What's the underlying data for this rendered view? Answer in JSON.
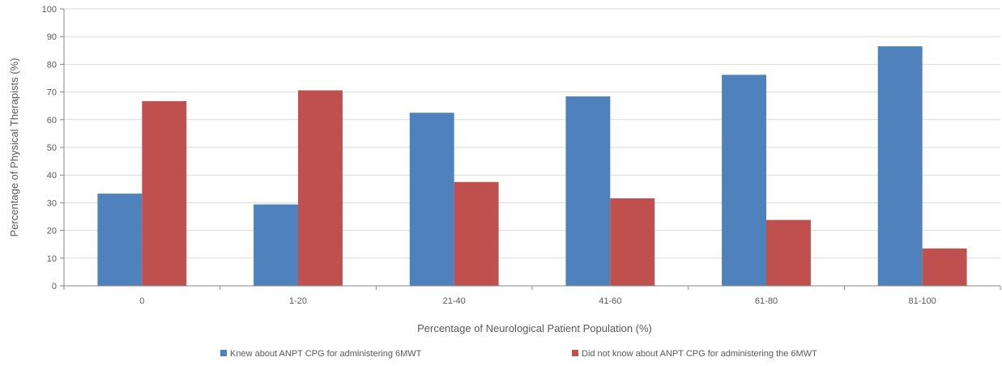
{
  "chart_data": {
    "type": "bar",
    "title": "",
    "xlabel": "Percentage of Neurological Patient Population (%)",
    "ylabel": "Percentage of Physical Therapists (%)",
    "ylim": [
      0,
      100
    ],
    "yticks": [
      0,
      10,
      20,
      30,
      40,
      50,
      60,
      70,
      80,
      90,
      100
    ],
    "grid": true,
    "legend_position": "bottom",
    "categories": [
      "0",
      "1-20",
      "21-40",
      "41-60",
      "61-80",
      "81-100"
    ],
    "series": [
      {
        "name": "Knew about ANPT CPG for administering 6MWT",
        "color": "#4F81BD",
        "values": [
          33.3,
          29.4,
          62.5,
          68.4,
          76.2,
          86.5
        ]
      },
      {
        "name": "Did not know about ANPT CPG for administering the 6MWT",
        "color": "#C0504D",
        "values": [
          66.7,
          70.6,
          37.5,
          31.6,
          23.8,
          13.5
        ]
      }
    ]
  }
}
